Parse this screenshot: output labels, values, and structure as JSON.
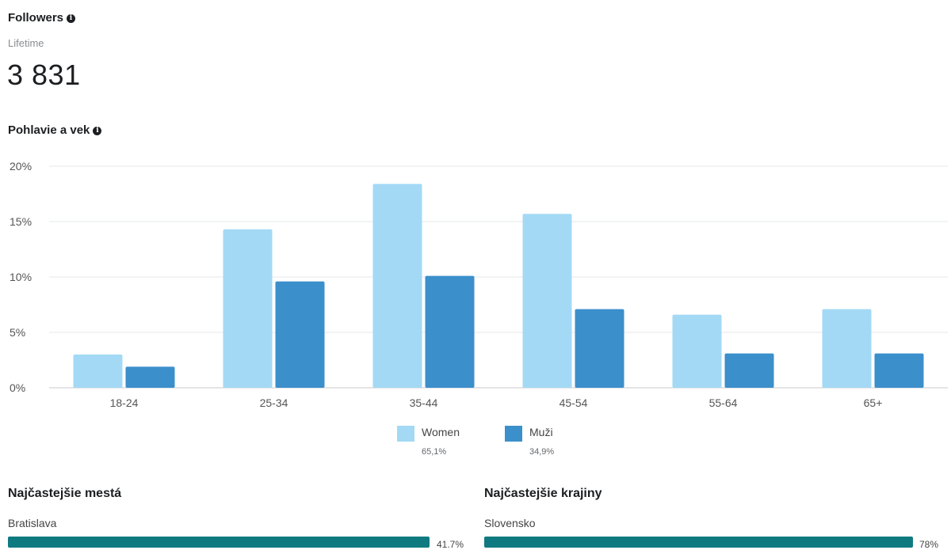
{
  "followers": {
    "title": "Followers",
    "period": "Lifetime",
    "count": "3 831"
  },
  "gender_age": {
    "title": "Pohlavie a vek",
    "legend": [
      {
        "name": "Women",
        "pct": "65,1%",
        "color": "#a3d9f5"
      },
      {
        "name": "Muži",
        "pct": "34,9%",
        "color": "#3b8fcb"
      }
    ]
  },
  "chart_data": {
    "type": "bar",
    "categories": [
      "18-24",
      "25-34",
      "35-44",
      "45-54",
      "55-64",
      "65+"
    ],
    "series": [
      {
        "name": "Women",
        "values": [
          3.0,
          14.3,
          18.4,
          15.7,
          6.6,
          7.1
        ],
        "color": "#a3d9f5"
      },
      {
        "name": "Muži",
        "values": [
          1.9,
          9.6,
          10.1,
          7.1,
          3.1,
          3.1
        ],
        "color": "#3b8fcb"
      }
    ],
    "yticks": [
      "0%",
      "5%",
      "10%",
      "15%",
      "20%"
    ],
    "ylim": [
      0,
      20
    ],
    "grid": true,
    "legend_position": "bottom-center"
  },
  "top_cities": {
    "title": "Najčastejšie mestá",
    "items": [
      {
        "label": "Bratislava",
        "value": 41.7,
        "pct": "41.7%"
      }
    ]
  },
  "top_countries": {
    "title": "Najčastejšie krajiny",
    "items": [
      {
        "label": "Slovensko",
        "value": 78,
        "pct": "78%"
      }
    ]
  }
}
